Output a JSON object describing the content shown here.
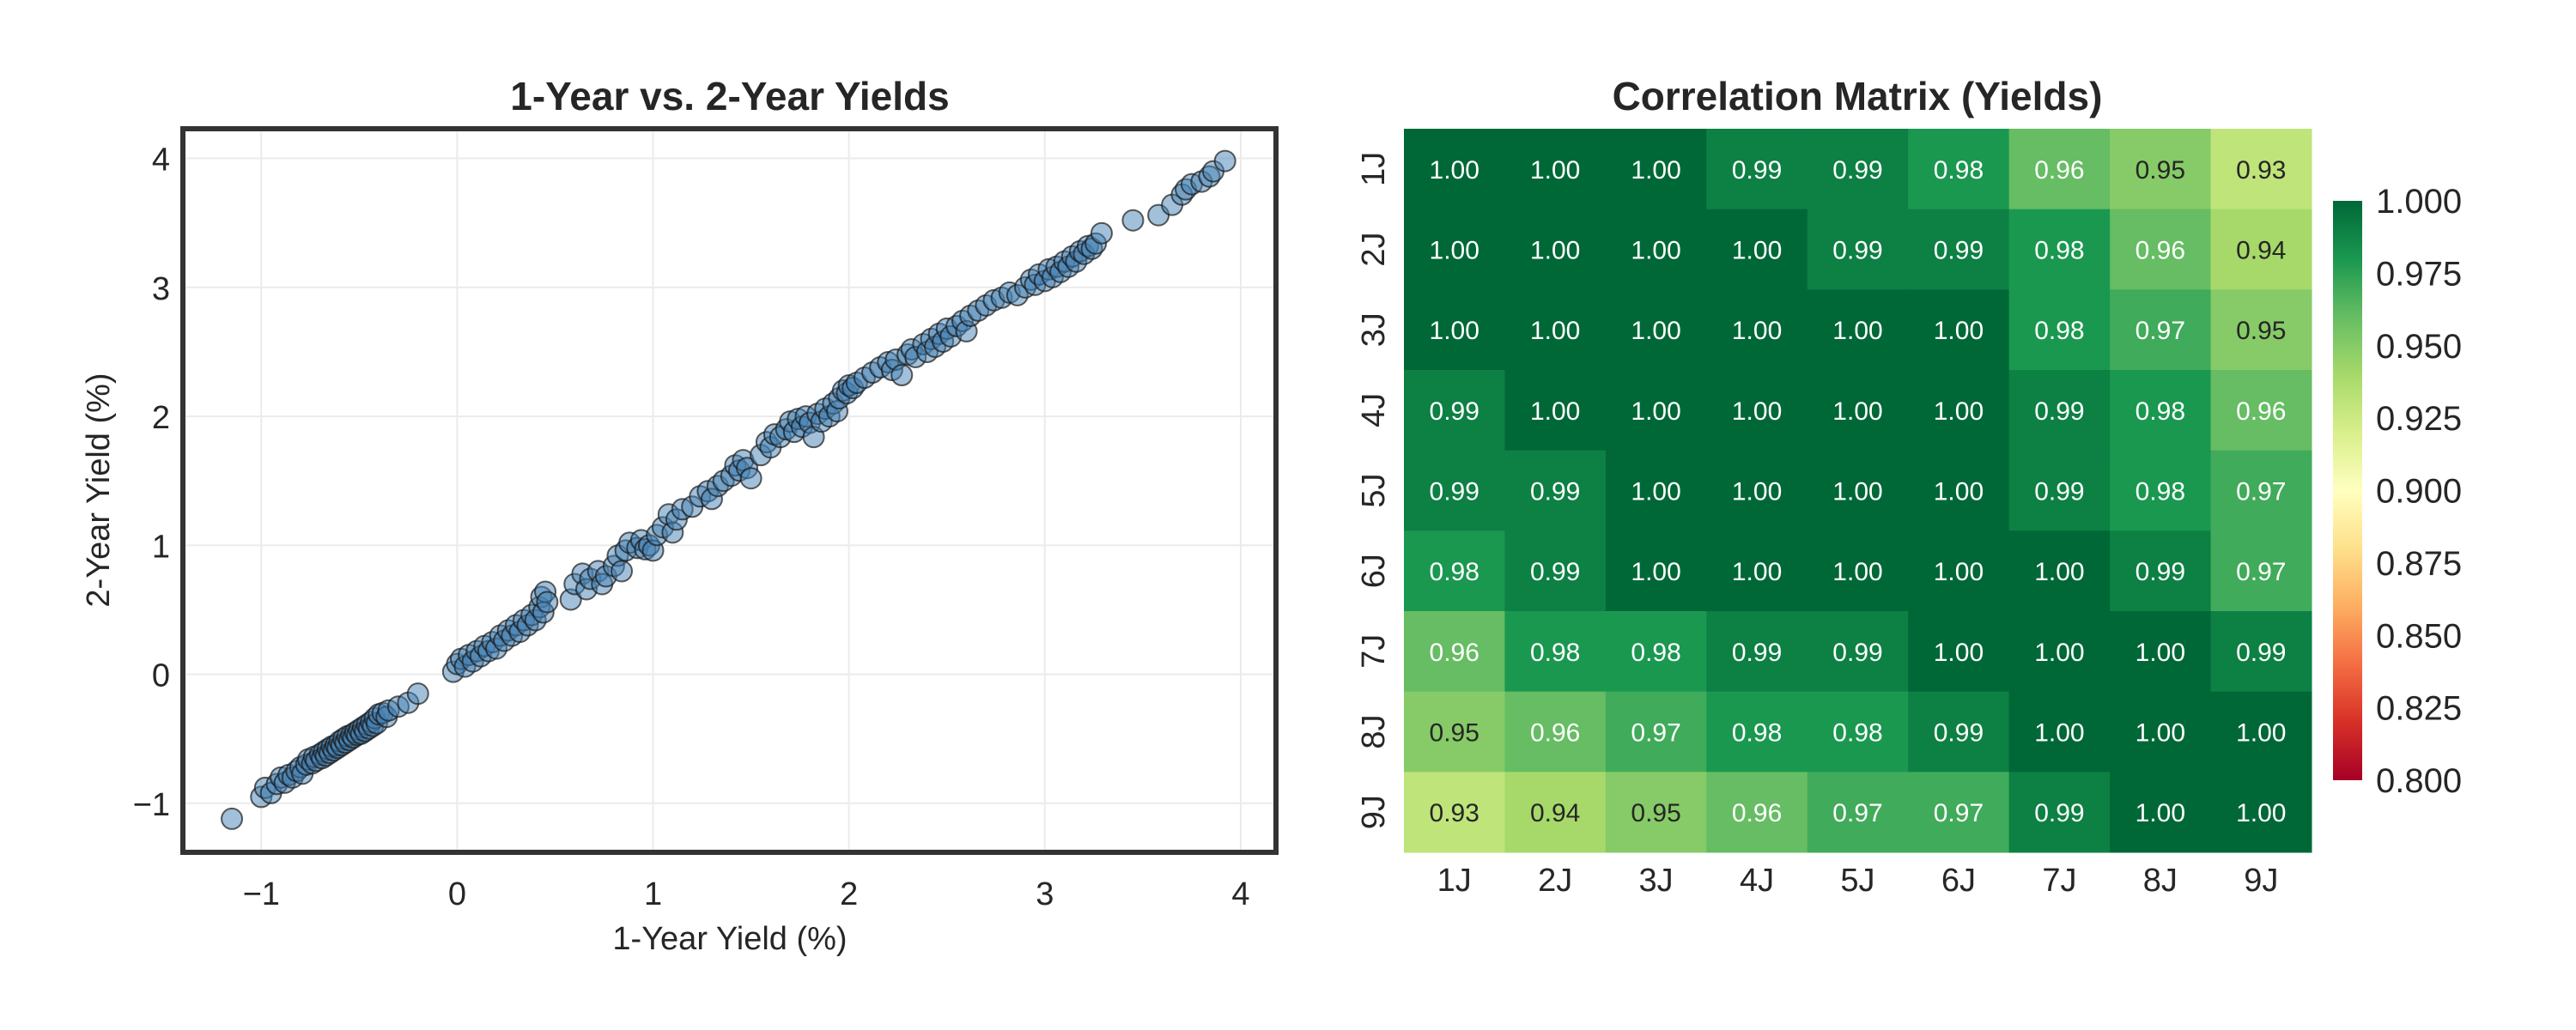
{
  "chart_data": [
    {
      "type": "scatter",
      "title": "1-Year vs. 2-Year Yields",
      "xlabel": "1-Year Yield (%)",
      "ylabel": "2-Year Yield (%)",
      "xlim": [
        -1.4,
        4.18
      ],
      "ylim": [
        -1.38,
        4.23
      ],
      "xticks": [
        -1,
        0,
        1,
        2,
        3,
        4
      ],
      "xtick_labels": [
        "−1",
        "0",
        "1",
        "2",
        "3",
        "4"
      ],
      "yticks": [
        -1,
        0,
        1,
        2,
        3,
        4
      ],
      "ytick_labels": [
        "−1",
        "0",
        "1",
        "2",
        "3",
        "4"
      ],
      "grid": true,
      "marker_color": "#4682b4",
      "marker_edge_color": "#1a1a1a",
      "points": [
        [
          -1.15,
          -1.12
        ],
        [
          -1.0,
          -0.95
        ],
        [
          -0.98,
          -0.88
        ],
        [
          -0.95,
          -0.92
        ],
        [
          -0.92,
          -0.85
        ],
        [
          -0.9,
          -0.8
        ],
        [
          -0.88,
          -0.84
        ],
        [
          -0.86,
          -0.78
        ],
        [
          -0.84,
          -0.8
        ],
        [
          -0.82,
          -0.75
        ],
        [
          -0.8,
          -0.72
        ],
        [
          -0.79,
          -0.77
        ],
        [
          -0.77,
          -0.7
        ],
        [
          -0.76,
          -0.66
        ],
        [
          -0.74,
          -0.69
        ],
        [
          -0.73,
          -0.64
        ],
        [
          -0.72,
          -0.67
        ],
        [
          -0.7,
          -0.62
        ],
        [
          -0.69,
          -0.65
        ],
        [
          -0.68,
          -0.6
        ],
        [
          -0.67,
          -0.63
        ],
        [
          -0.66,
          -0.58
        ],
        [
          -0.65,
          -0.61
        ],
        [
          -0.64,
          -0.56
        ],
        [
          -0.63,
          -0.59
        ],
        [
          -0.62,
          -0.55
        ],
        [
          -0.61,
          -0.57
        ],
        [
          -0.6,
          -0.52
        ],
        [
          -0.59,
          -0.55
        ],
        [
          -0.58,
          -0.5
        ],
        [
          -0.57,
          -0.53
        ],
        [
          -0.56,
          -0.48
        ],
        [
          -0.55,
          -0.51
        ],
        [
          -0.54,
          -0.47
        ],
        [
          -0.53,
          -0.49
        ],
        [
          -0.52,
          -0.45
        ],
        [
          -0.51,
          -0.47
        ],
        [
          -0.5,
          -0.43
        ],
        [
          -0.49,
          -0.46
        ],
        [
          -0.48,
          -0.41
        ],
        [
          -0.47,
          -0.44
        ],
        [
          -0.46,
          -0.39
        ],
        [
          -0.45,
          -0.42
        ],
        [
          -0.44,
          -0.37
        ],
        [
          -0.43,
          -0.4
        ],
        [
          -0.42,
          -0.34
        ],
        [
          -0.41,
          -0.38
        ],
        [
          -0.4,
          -0.31
        ],
        [
          -0.38,
          -0.3
        ],
        [
          -0.36,
          -0.33
        ],
        [
          -0.35,
          -0.28
        ],
        [
          -0.3,
          -0.25
        ],
        [
          -0.25,
          -0.22
        ],
        [
          -0.2,
          -0.15
        ],
        [
          -0.02,
          0.02
        ],
        [
          0.0,
          0.08
        ],
        [
          0.02,
          0.12
        ],
        [
          0.04,
          0.06
        ],
        [
          0.06,
          0.15
        ],
        [
          0.08,
          0.1
        ],
        [
          0.1,
          0.18
        ],
        [
          0.12,
          0.14
        ],
        [
          0.14,
          0.22
        ],
        [
          0.16,
          0.18
        ],
        [
          0.18,
          0.25
        ],
        [
          0.2,
          0.2
        ],
        [
          0.22,
          0.3
        ],
        [
          0.24,
          0.26
        ],
        [
          0.26,
          0.34
        ],
        [
          0.28,
          0.3
        ],
        [
          0.3,
          0.38
        ],
        [
          0.32,
          0.33
        ],
        [
          0.34,
          0.42
        ],
        [
          0.36,
          0.38
        ],
        [
          0.38,
          0.46
        ],
        [
          0.4,
          0.42
        ],
        [
          0.42,
          0.52
        ],
        [
          0.43,
          0.6
        ],
        [
          0.44,
          0.48
        ],
        [
          0.45,
          0.64
        ],
        [
          0.46,
          0.56
        ],
        [
          0.58,
          0.58
        ],
        [
          0.6,
          0.7
        ],
        [
          0.64,
          0.78
        ],
        [
          0.66,
          0.66
        ],
        [
          0.68,
          0.74
        ],
        [
          0.72,
          0.8
        ],
        [
          0.74,
          0.7
        ],
        [
          0.76,
          0.76
        ],
        [
          0.8,
          0.84
        ],
        [
          0.82,
          0.92
        ],
        [
          0.84,
          0.8
        ],
        [
          0.86,
          0.96
        ],
        [
          0.88,
          1.02
        ],
        [
          0.92,
          0.98
        ],
        [
          0.94,
          1.04
        ],
        [
          0.96,
          0.97
        ],
        [
          0.98,
          1.0
        ],
        [
          1.0,
          0.96
        ],
        [
          1.02,
          1.08
        ],
        [
          1.05,
          1.14
        ],
        [
          1.08,
          1.24
        ],
        [
          1.1,
          1.1
        ],
        [
          1.12,
          1.2
        ],
        [
          1.15,
          1.28
        ],
        [
          1.2,
          1.3
        ],
        [
          1.24,
          1.38
        ],
        [
          1.28,
          1.42
        ],
        [
          1.3,
          1.36
        ],
        [
          1.33,
          1.46
        ],
        [
          1.36,
          1.5
        ],
        [
          1.4,
          1.54
        ],
        [
          1.42,
          1.62
        ],
        [
          1.44,
          1.58
        ],
        [
          1.46,
          1.66
        ],
        [
          1.48,
          1.6
        ],
        [
          1.5,
          1.52
        ],
        [
          1.55,
          1.7
        ],
        [
          1.58,
          1.8
        ],
        [
          1.6,
          1.76
        ],
        [
          1.62,
          1.86
        ],
        [
          1.65,
          1.84
        ],
        [
          1.68,
          1.9
        ],
        [
          1.7,
          1.96
        ],
        [
          1.72,
          1.88
        ],
        [
          1.74,
          1.98
        ],
        [
          1.76,
          1.92
        ],
        [
          1.78,
          2.0
        ],
        [
          1.8,
          1.95
        ],
        [
          1.82,
          1.84
        ],
        [
          1.84,
          2.02
        ],
        [
          1.86,
          1.96
        ],
        [
          1.88,
          2.06
        ],
        [
          1.9,
          2.0
        ],
        [
          1.92,
          2.1
        ],
        [
          1.94,
          2.04
        ],
        [
          1.95,
          2.14
        ],
        [
          1.97,
          2.2
        ],
        [
          1.99,
          2.18
        ],
        [
          2.0,
          2.24
        ],
        [
          2.02,
          2.22
        ],
        [
          2.04,
          2.26
        ],
        [
          2.08,
          2.3
        ],
        [
          2.12,
          2.34
        ],
        [
          2.16,
          2.38
        ],
        [
          2.2,
          2.42
        ],
        [
          2.22,
          2.36
        ],
        [
          2.24,
          2.44
        ],
        [
          2.27,
          2.32
        ],
        [
          2.3,
          2.48
        ],
        [
          2.32,
          2.52
        ],
        [
          2.34,
          2.46
        ],
        [
          2.38,
          2.56
        ],
        [
          2.4,
          2.5
        ],
        [
          2.42,
          2.6
        ],
        [
          2.44,
          2.54
        ],
        [
          2.46,
          2.64
        ],
        [
          2.48,
          2.58
        ],
        [
          2.5,
          2.68
        ],
        [
          2.52,
          2.62
        ],
        [
          2.55,
          2.7
        ],
        [
          2.58,
          2.74
        ],
        [
          2.6,
          2.66
        ],
        [
          2.62,
          2.78
        ],
        [
          2.66,
          2.82
        ],
        [
          2.7,
          2.86
        ],
        [
          2.74,
          2.9
        ],
        [
          2.78,
          2.92
        ],
        [
          2.82,
          2.96
        ],
        [
          2.86,
          2.94
        ],
        [
          2.9,
          3.0
        ],
        [
          2.93,
          3.06
        ],
        [
          2.95,
          3.02
        ],
        [
          2.97,
          3.1
        ],
        [
          3.0,
          3.05
        ],
        [
          3.02,
          3.14
        ],
        [
          3.04,
          3.08
        ],
        [
          3.06,
          3.16
        ],
        [
          3.08,
          3.12
        ],
        [
          3.1,
          3.2
        ],
        [
          3.12,
          3.16
        ],
        [
          3.14,
          3.24
        ],
        [
          3.16,
          3.2
        ],
        [
          3.18,
          3.28
        ],
        [
          3.2,
          3.26
        ],
        [
          3.22,
          3.32
        ],
        [
          3.24,
          3.3
        ],
        [
          3.26,
          3.34
        ],
        [
          3.29,
          3.42
        ],
        [
          3.45,
          3.52
        ],
        [
          3.58,
          3.56
        ],
        [
          3.65,
          3.64
        ],
        [
          3.7,
          3.72
        ],
        [
          3.72,
          3.76
        ],
        [
          3.75,
          3.8
        ],
        [
          3.8,
          3.82
        ],
        [
          3.84,
          3.86
        ],
        [
          3.86,
          3.9
        ],
        [
          3.92,
          3.98
        ]
      ]
    },
    {
      "type": "heatmap",
      "title": "Correlation Matrix (Yields)",
      "x_labels": [
        "1J",
        "2J",
        "3J",
        "4J",
        "5J",
        "6J",
        "7J",
        "8J",
        "9J"
      ],
      "y_labels": [
        "1J",
        "2J",
        "3J",
        "4J",
        "5J",
        "6J",
        "7J",
        "8J",
        "9J"
      ],
      "colormap": "RdYlGn",
      "vmin": 0.8,
      "vmax": 1.0,
      "colorbar_ticks": [
        "1.000",
        "0.975",
        "0.950",
        "0.925",
        "0.900",
        "0.875",
        "0.850",
        "0.825",
        "0.800"
      ],
      "values": [
        [
          1.0,
          1.0,
          1.0,
          0.99,
          0.99,
          0.98,
          0.96,
          0.95,
          0.93
        ],
        [
          1.0,
          1.0,
          1.0,
          1.0,
          0.99,
          0.99,
          0.98,
          0.96,
          0.94
        ],
        [
          1.0,
          1.0,
          1.0,
          1.0,
          1.0,
          1.0,
          0.98,
          0.97,
          0.95
        ],
        [
          0.99,
          1.0,
          1.0,
          1.0,
          1.0,
          1.0,
          0.99,
          0.98,
          0.96
        ],
        [
          0.99,
          0.99,
          1.0,
          1.0,
          1.0,
          1.0,
          0.99,
          0.98,
          0.97
        ],
        [
          0.98,
          0.99,
          1.0,
          1.0,
          1.0,
          1.0,
          1.0,
          0.99,
          0.97
        ],
        [
          0.96,
          0.98,
          0.98,
          0.99,
          0.99,
          1.0,
          1.0,
          1.0,
          0.99
        ],
        [
          0.95,
          0.96,
          0.97,
          0.98,
          0.98,
          0.99,
          1.0,
          1.0,
          1.0
        ],
        [
          0.93,
          0.94,
          0.95,
          0.96,
          0.97,
          0.97,
          0.99,
          1.0,
          1.0
        ]
      ],
      "annotations": [
        [
          "1.00",
          "1.00",
          "1.00",
          "0.99",
          "0.99",
          "0.98",
          "0.96",
          "0.95",
          "0.93"
        ],
        [
          "1.00",
          "1.00",
          "1.00",
          "1.00",
          "0.99",
          "0.99",
          "0.98",
          "0.96",
          "0.94"
        ],
        [
          "1.00",
          "1.00",
          "1.00",
          "1.00",
          "1.00",
          "1.00",
          "0.98",
          "0.97",
          "0.95"
        ],
        [
          "0.99",
          "1.00",
          "1.00",
          "1.00",
          "1.00",
          "1.00",
          "0.99",
          "0.98",
          "0.96"
        ],
        [
          "0.99",
          "0.99",
          "1.00",
          "1.00",
          "1.00",
          "1.00",
          "0.99",
          "0.98",
          "0.97"
        ],
        [
          "0.98",
          "0.99",
          "1.00",
          "1.00",
          "1.00",
          "1.00",
          "1.00",
          "0.99",
          "0.97"
        ],
        [
          "0.96",
          "0.98",
          "0.98",
          "0.99",
          "0.99",
          "1.00",
          "1.00",
          "1.00",
          "0.99"
        ],
        [
          "0.95",
          "0.96",
          "0.97",
          "0.98",
          "0.98",
          "0.99",
          "1.00",
          "1.00",
          "1.00"
        ],
        [
          "0.93",
          "0.94",
          "0.95",
          "0.96",
          "0.97",
          "0.97",
          "0.99",
          "1.00",
          "1.00"
        ]
      ],
      "text_dark_color": "#262626",
      "text_light_color": "#ffffff"
    }
  ]
}
